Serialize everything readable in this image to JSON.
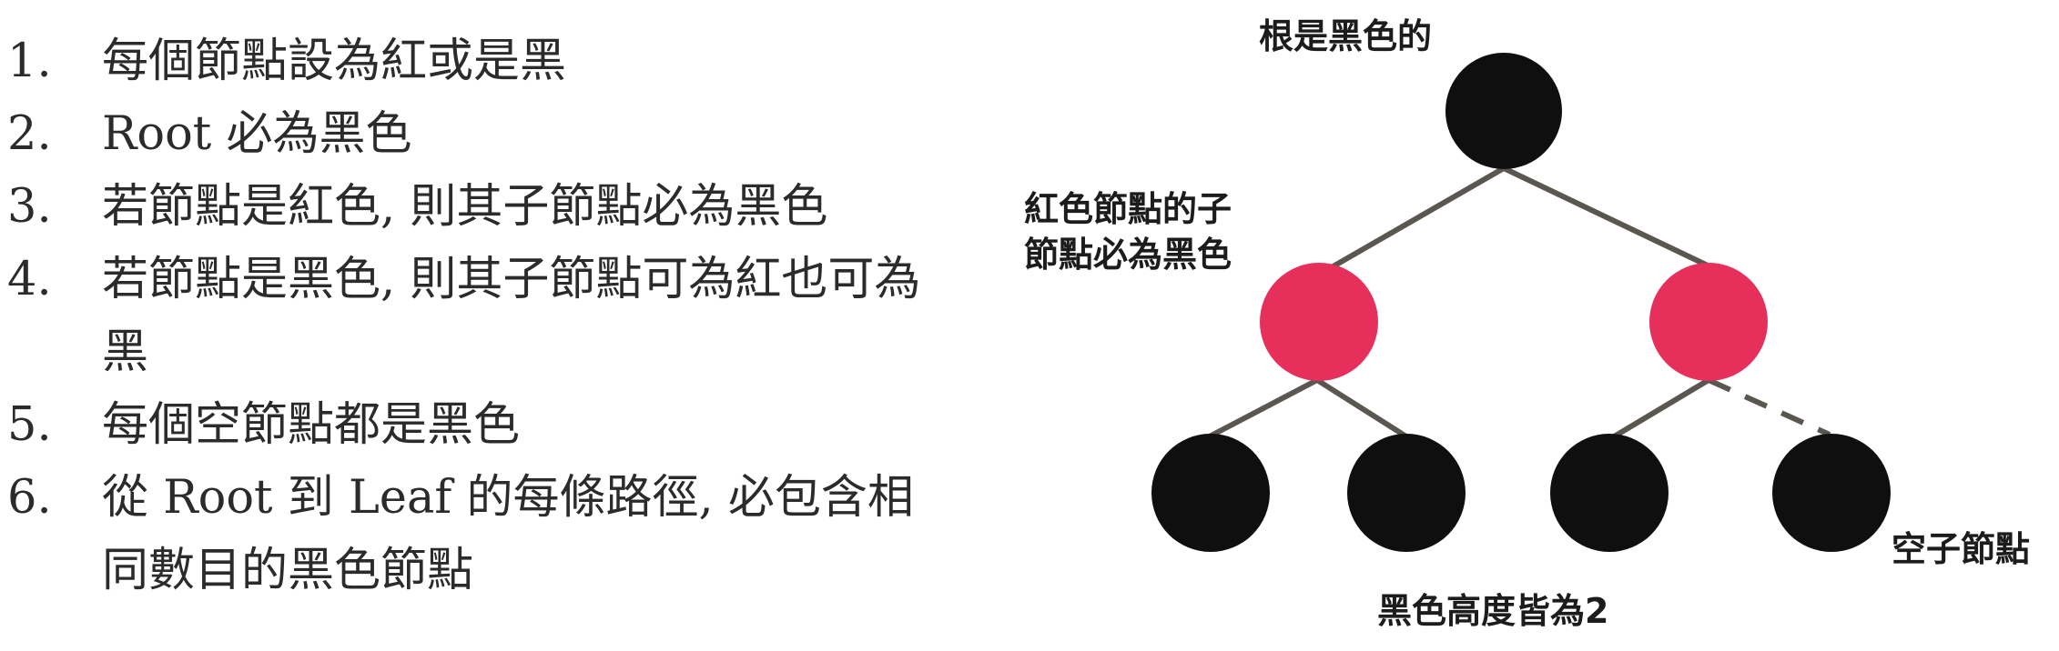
{
  "rules": [
    {
      "number": "1.",
      "text": "每個節點設為紅或是黑"
    },
    {
      "number": "2.",
      "text": "Root 必為黑色"
    },
    {
      "number": "3.",
      "text": "若節點是紅色, 則其子節點必為黑色"
    },
    {
      "number": "4.",
      "text": "若節點是黑色, 則其子節點可為紅也可為黑"
    },
    {
      "number": "5.",
      "text": "每個空節點都是黑色"
    },
    {
      "number": "6.",
      "text": "從 Root 到 Leaf 的每條路徑, 必包含相同數目的黑色節點"
    }
  ],
  "tree": {
    "labels": {
      "root": "根是黑色的",
      "red_child_line1": "紅色節點的子",
      "red_child_line2": "節點必為黑色",
      "null_node": "空子節點",
      "black_height": "黑色高度皆為2"
    },
    "colors": {
      "black_node": "#0f0f0f",
      "red_node": "#e6305b",
      "edge": "#5a5650"
    },
    "nodes": [
      {
        "id": "root",
        "color": "black"
      },
      {
        "id": "left-red",
        "color": "red"
      },
      {
        "id": "right-red",
        "color": "red"
      },
      {
        "id": "leaf-1",
        "color": "black"
      },
      {
        "id": "leaf-2",
        "color": "black"
      },
      {
        "id": "leaf-3",
        "color": "black"
      },
      {
        "id": "null-leaf",
        "color": "black"
      }
    ],
    "edges": [
      {
        "from": "root",
        "to": "left-red",
        "style": "solid"
      },
      {
        "from": "root",
        "to": "right-red",
        "style": "solid"
      },
      {
        "from": "left-red",
        "to": "leaf-1",
        "style": "solid"
      },
      {
        "from": "left-red",
        "to": "leaf-2",
        "style": "solid"
      },
      {
        "from": "right-red",
        "to": "leaf-3",
        "style": "solid"
      },
      {
        "from": "right-red",
        "to": "null-leaf",
        "style": "dashed"
      }
    ]
  }
}
